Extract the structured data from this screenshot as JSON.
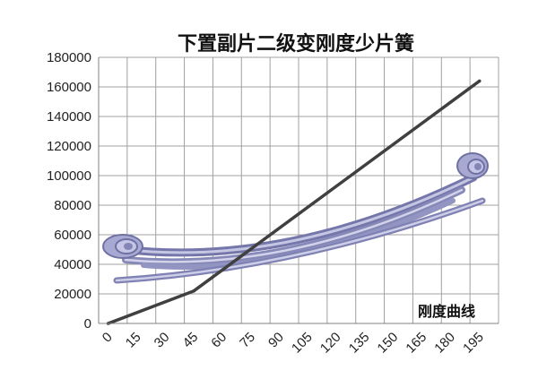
{
  "chart_data": {
    "type": "line",
    "title": "下置副片二级变刚度少片簧",
    "annotation": "刚度曲线",
    "xlabel": "",
    "ylabel": "",
    "x_ticks": [
      "0",
      "15",
      "30",
      "45",
      "60",
      "75",
      "90",
      "105",
      "120",
      "135",
      "150",
      "165",
      "180",
      "195"
    ],
    "y_ticks": [
      "0",
      "20000",
      "40000",
      "60000",
      "80000",
      "100000",
      "120000",
      "140000",
      "160000",
      "180000"
    ],
    "xlim": [
      0,
      210
    ],
    "ylim": [
      0,
      180000
    ],
    "grid": true,
    "legend": "none",
    "series": [
      {
        "x": [
          5,
          50,
          200
        ],
        "y": [
          0,
          22000,
          164000
        ],
        "color": "#404040"
      }
    ],
    "background_illustration": "leaf-spring-drawing",
    "colors": {
      "line": "#404040",
      "grid": "#a0a0a0",
      "spring": "#9a9cc8",
      "spring_dark": "#6f71a3"
    }
  }
}
